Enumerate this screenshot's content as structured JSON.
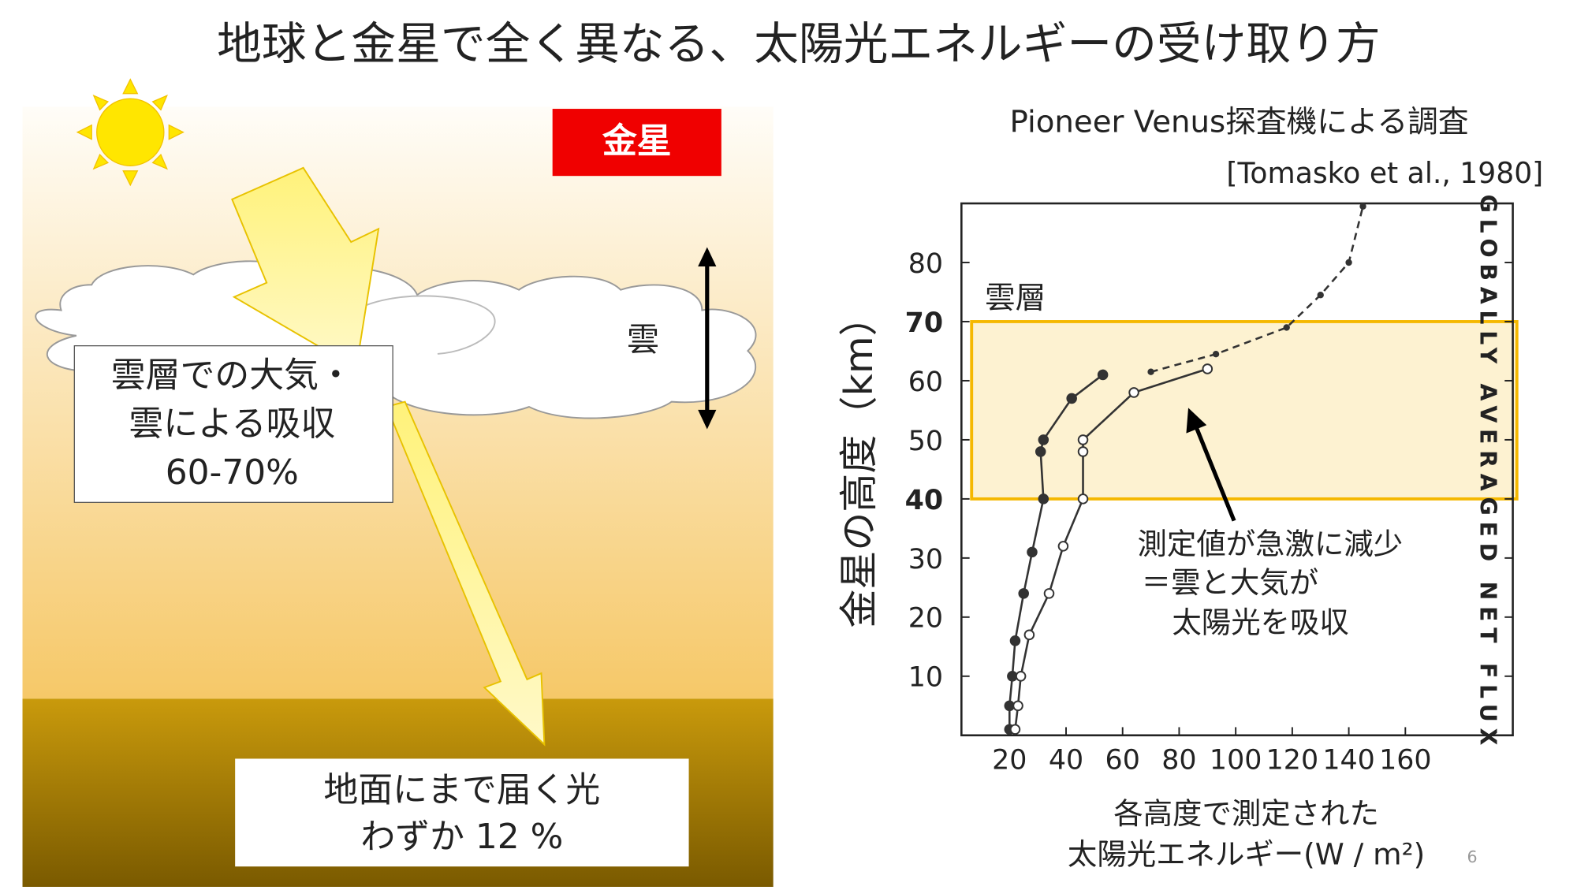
{
  "title": "地球と金星で全く異なる、太陽光エネルギーの受け取り方",
  "diagram": {
    "planet_label": "金星",
    "cloud_label": "雲",
    "absorption_box": [
      "雲層での大気・",
      "雲による吸収",
      "60-70%"
    ],
    "ground_box": [
      "地面にまで届く光",
      "わずか 12 %"
    ]
  },
  "source": {
    "subtitle": "Pioneer Venus探査機による調査",
    "citation": "[Tomasko et al., 1980]"
  },
  "page_number": "6",
  "chart_data": {
    "type": "line",
    "y_label": "金星の高度（km）",
    "x_label": [
      "各高度で測定された",
      "太陽光エネルギー(W / m²)"
    ],
    "side_label": "GLOBALLY AVERAGED NET FLUX",
    "xlim": [
      3,
      198
    ],
    "ylim": [
      0,
      90
    ],
    "xticks": [
      20,
      40,
      60,
      80,
      100,
      120,
      140,
      160
    ],
    "yticks": [
      10,
      20,
      30,
      40,
      50,
      60,
      70,
      80
    ],
    "band": {
      "label": "雲層",
      "range": [
        40,
        70
      ],
      "color": "#f5b800"
    },
    "annotation": [
      "測定値が急激に減少",
      "＝雲と大気が",
      "太陽光を吸収"
    ],
    "series": [
      {
        "color": "#333333",
        "line_style": "solid",
        "x": [
          20,
          20,
          21,
          22,
          25,
          28,
          32,
          31,
          32,
          42,
          53
        ],
        "values": [
          1,
          5,
          10,
          16,
          24,
          31,
          40,
          48,
          50,
          57,
          61
        ]
      },
      {
        "color": "#333333",
        "line_style": "solid",
        "x": [
          22,
          23,
          24,
          27,
          34,
          39,
          46,
          46,
          46,
          64,
          90
        ],
        "values": [
          1,
          5,
          10,
          17,
          24,
          32,
          40,
          48,
          50,
          58,
          62
        ]
      },
      {
        "color": "#333333",
        "line_style": "dashed",
        "x": [
          70,
          93,
          118,
          130,
          140,
          145
        ],
        "values": [
          61.5,
          64.5,
          69,
          74.5,
          80,
          89.5
        ]
      }
    ]
  }
}
